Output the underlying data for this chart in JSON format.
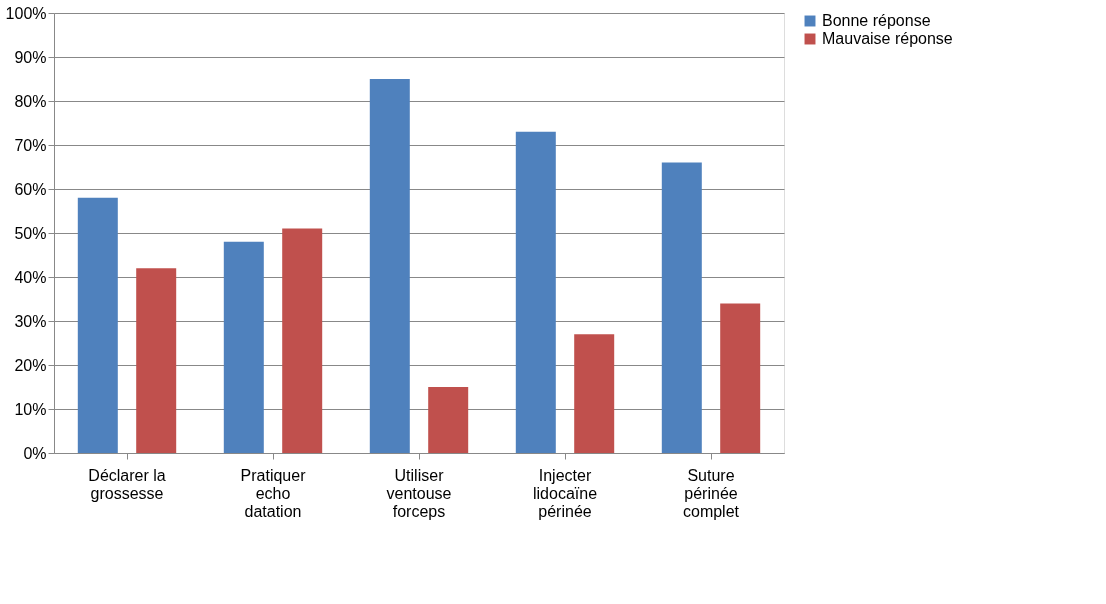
{
  "chart_data": {
    "type": "bar",
    "categories": [
      "Déclarer la\ngrossesse",
      "Pratiquer\necho\ndatation",
      "Utiliser\nventouse\nforceps",
      "Injecter\nlidocaïne\npérinée",
      "Suture\npérinée\ncomplet"
    ],
    "series": [
      {
        "name": "Bonne réponse",
        "color": "#4f81bd",
        "values": [
          58,
          48,
          85,
          73,
          66
        ]
      },
      {
        "name": "Mauvaise réponse",
        "color": "#c0504d",
        "values": [
          42,
          51,
          15,
          27,
          34
        ]
      }
    ],
    "ylim": [
      0,
      100
    ],
    "yticks": [
      {
        "value": 0,
        "label": "0%"
      },
      {
        "value": 10,
        "label": "10%"
      },
      {
        "value": 20,
        "label": "20%"
      },
      {
        "value": 30,
        "label": "30%"
      },
      {
        "value": 40,
        "label": "40%"
      },
      {
        "value": 50,
        "label": "50%"
      },
      {
        "value": 60,
        "label": "60%"
      },
      {
        "value": 70,
        "label": "70%"
      },
      {
        "value": 80,
        "label": "80%"
      },
      {
        "value": 90,
        "label": "90%"
      },
      {
        "value": 100,
        "label": "100%"
      }
    ],
    "grid": "y",
    "legend": "right"
  }
}
